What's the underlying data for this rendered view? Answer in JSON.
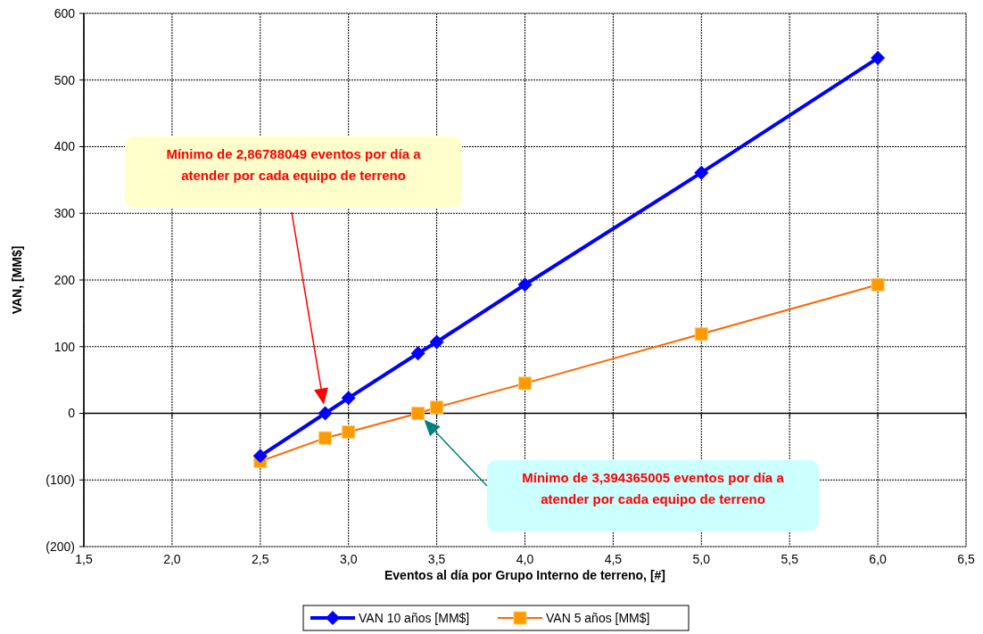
{
  "chart_data": {
    "type": "line",
    "xlabel": "Eventos al día por Grupo Interno de terreno, [#]",
    "ylabel": "VAN, [MM$]",
    "x": [
      2.5,
      2.868,
      3.0,
      3.394,
      3.5,
      4.0,
      5.0,
      6.0
    ],
    "series": [
      {
        "name": "VAN 10 años [MM$]",
        "color": "#0000ff",
        "marker": "diamond",
        "values": [
          -64,
          0,
          23,
          90,
          107,
          193,
          361,
          533
        ]
      },
      {
        "name": "VAN 5 años [MM$]",
        "color": "#ff6600",
        "marker": "square",
        "values": [
          -72,
          -37,
          -28,
          0,
          9,
          45,
          119,
          193
        ]
      }
    ],
    "xlim": [
      1.5,
      6.5
    ],
    "xticks": [
      {
        "value": 1.5,
        "label": "1,5"
      },
      {
        "value": 2.0,
        "label": "2,0"
      },
      {
        "value": 2.5,
        "label": "2,5"
      },
      {
        "value": 3.0,
        "label": "3,0"
      },
      {
        "value": 3.5,
        "label": "3,5"
      },
      {
        "value": 4.0,
        "label": "4,0"
      },
      {
        "value": 4.5,
        "label": "4,5"
      },
      {
        "value": 5.0,
        "label": "5,0"
      },
      {
        "value": 5.5,
        "label": "5,5"
      },
      {
        "value": 6.0,
        "label": "6,0"
      },
      {
        "value": 6.5,
        "label": "6,5"
      }
    ],
    "ylim": [
      -200,
      600
    ],
    "yticks": [
      {
        "value": -200,
        "label": "(200)"
      },
      {
        "value": -100,
        "label": "(100)"
      },
      0,
      100,
      200,
      300,
      400,
      500,
      600
    ],
    "grid": true,
    "legend": "bottom",
    "annotations": [
      "Mínimo de 2,86788049 eventos por día a atender por cada equipo de terreno",
      "Mínimo de 3,394365005 eventos por día a atender por cada equipo de terreno"
    ]
  }
}
